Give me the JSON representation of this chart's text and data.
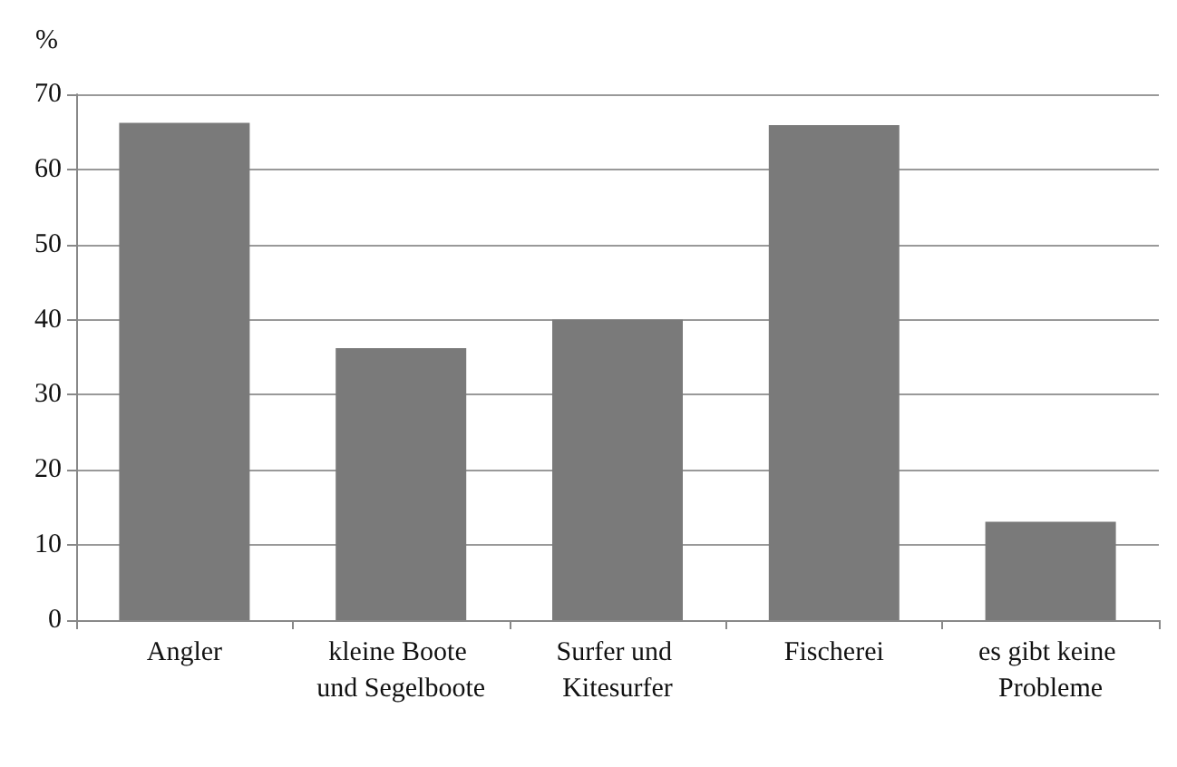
{
  "chart_data": {
    "type": "bar",
    "ylabel": "%",
    "categories": [
      "Angler",
      "kleine Boote und Segelboote",
      "Surfer und Kitesurfer",
      "Fischerei",
      "es gibt keine Probleme"
    ],
    "values": [
      66.2,
      36.2,
      40.0,
      65.9,
      13.1
    ],
    "color": "#7a7a7a",
    "ylim": [
      0,
      70
    ],
    "yticks": [
      0,
      10,
      20,
      30,
      40,
      50,
      60,
      70
    ],
    "grid": "y"
  }
}
